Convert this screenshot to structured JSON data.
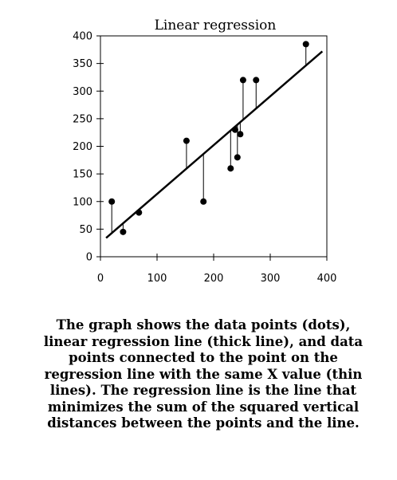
{
  "chart_data": {
    "type": "scatter",
    "title": "Linear regression",
    "xlabel": "",
    "ylabel": "",
    "xlim": [
      0,
      400
    ],
    "ylim": [
      0,
      400
    ],
    "x_ticks": [
      0,
      100,
      200,
      300,
      400
    ],
    "y_ticks": [
      0,
      50,
      100,
      150,
      200,
      250,
      300,
      350,
      400
    ],
    "grid": false,
    "points": [
      {
        "x": 20,
        "y": 100
      },
      {
        "x": 40,
        "y": 45
      },
      {
        "x": 68,
        "y": 80
      },
      {
        "x": 152,
        "y": 210
      },
      {
        "x": 182,
        "y": 100
      },
      {
        "x": 230,
        "y": 160
      },
      {
        "x": 238,
        "y": 230
      },
      {
        "x": 242,
        "y": 180
      },
      {
        "x": 247,
        "y": 222
      },
      {
        "x": 252,
        "y": 320
      },
      {
        "x": 275,
        "y": 320
      },
      {
        "x": 363,
        "y": 385
      }
    ],
    "regression_line": {
      "x": [
        10,
        392
      ],
      "y": [
        34,
        372
      ]
    }
  },
  "caption": "The graph shows the data points (dots), linear regression line (thick line), and data points connected to the point on the regression line with the same X value (thin lines). The regression line is the line that minimizes the sum of the squared vertical distances between the points and the line."
}
